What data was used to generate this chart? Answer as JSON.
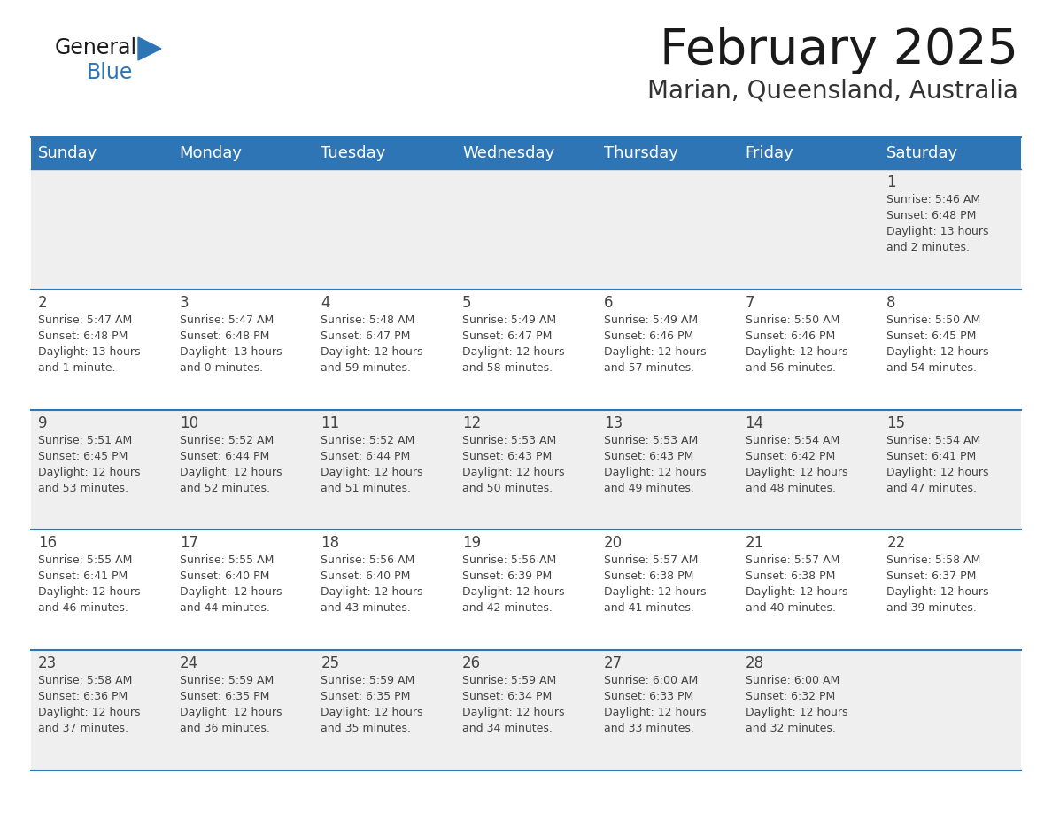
{
  "title": "February 2025",
  "subtitle": "Marian, Queensland, Australia",
  "days_of_week": [
    "Sunday",
    "Monday",
    "Tuesday",
    "Wednesday",
    "Thursday",
    "Friday",
    "Saturday"
  ],
  "header_bg": "#2E75B6",
  "header_text_color": "#FFFFFF",
  "cell_bg_odd": "#EFEFEF",
  "cell_bg_even": "#FFFFFF",
  "border_color": "#2E75B6",
  "text_color": "#444444",
  "title_color": "#1a1a1a",
  "subtitle_color": "#333333",
  "logo_black": "#1a1a1a",
  "logo_blue": "#2E75B6",
  "calendar_data": [
    [
      null,
      null,
      null,
      null,
      null,
      null,
      {
        "day": 1,
        "sunrise": "5:46 AM",
        "sunset": "6:48 PM",
        "daylight": "13 hours and 2 minutes."
      }
    ],
    [
      {
        "day": 2,
        "sunrise": "5:47 AM",
        "sunset": "6:48 PM",
        "daylight": "13 hours and 1 minute."
      },
      {
        "day": 3,
        "sunrise": "5:47 AM",
        "sunset": "6:48 PM",
        "daylight": "13 hours and 0 minutes."
      },
      {
        "day": 4,
        "sunrise": "5:48 AM",
        "sunset": "6:47 PM",
        "daylight": "12 hours and 59 minutes."
      },
      {
        "day": 5,
        "sunrise": "5:49 AM",
        "sunset": "6:47 PM",
        "daylight": "12 hours and 58 minutes."
      },
      {
        "day": 6,
        "sunrise": "5:49 AM",
        "sunset": "6:46 PM",
        "daylight": "12 hours and 57 minutes."
      },
      {
        "day": 7,
        "sunrise": "5:50 AM",
        "sunset": "6:46 PM",
        "daylight": "12 hours and 56 minutes."
      },
      {
        "day": 8,
        "sunrise": "5:50 AM",
        "sunset": "6:45 PM",
        "daylight": "12 hours and 54 minutes."
      }
    ],
    [
      {
        "day": 9,
        "sunrise": "5:51 AM",
        "sunset": "6:45 PM",
        "daylight": "12 hours and 53 minutes."
      },
      {
        "day": 10,
        "sunrise": "5:52 AM",
        "sunset": "6:44 PM",
        "daylight": "12 hours and 52 minutes."
      },
      {
        "day": 11,
        "sunrise": "5:52 AM",
        "sunset": "6:44 PM",
        "daylight": "12 hours and 51 minutes."
      },
      {
        "day": 12,
        "sunrise": "5:53 AM",
        "sunset": "6:43 PM",
        "daylight": "12 hours and 50 minutes."
      },
      {
        "day": 13,
        "sunrise": "5:53 AM",
        "sunset": "6:43 PM",
        "daylight": "12 hours and 49 minutes."
      },
      {
        "day": 14,
        "sunrise": "5:54 AM",
        "sunset": "6:42 PM",
        "daylight": "12 hours and 48 minutes."
      },
      {
        "day": 15,
        "sunrise": "5:54 AM",
        "sunset": "6:41 PM",
        "daylight": "12 hours and 47 minutes."
      }
    ],
    [
      {
        "day": 16,
        "sunrise": "5:55 AM",
        "sunset": "6:41 PM",
        "daylight": "12 hours and 46 minutes."
      },
      {
        "day": 17,
        "sunrise": "5:55 AM",
        "sunset": "6:40 PM",
        "daylight": "12 hours and 44 minutes."
      },
      {
        "day": 18,
        "sunrise": "5:56 AM",
        "sunset": "6:40 PM",
        "daylight": "12 hours and 43 minutes."
      },
      {
        "day": 19,
        "sunrise": "5:56 AM",
        "sunset": "6:39 PM",
        "daylight": "12 hours and 42 minutes."
      },
      {
        "day": 20,
        "sunrise": "5:57 AM",
        "sunset": "6:38 PM",
        "daylight": "12 hours and 41 minutes."
      },
      {
        "day": 21,
        "sunrise": "5:57 AM",
        "sunset": "6:38 PM",
        "daylight": "12 hours and 40 minutes."
      },
      {
        "day": 22,
        "sunrise": "5:58 AM",
        "sunset": "6:37 PM",
        "daylight": "12 hours and 39 minutes."
      }
    ],
    [
      {
        "day": 23,
        "sunrise": "5:58 AM",
        "sunset": "6:36 PM",
        "daylight": "12 hours and 37 minutes."
      },
      {
        "day": 24,
        "sunrise": "5:59 AM",
        "sunset": "6:35 PM",
        "daylight": "12 hours and 36 minutes."
      },
      {
        "day": 25,
        "sunrise": "5:59 AM",
        "sunset": "6:35 PM",
        "daylight": "12 hours and 35 minutes."
      },
      {
        "day": 26,
        "sunrise": "5:59 AM",
        "sunset": "6:34 PM",
        "daylight": "12 hours and 34 minutes."
      },
      {
        "day": 27,
        "sunrise": "6:00 AM",
        "sunset": "6:33 PM",
        "daylight": "12 hours and 33 minutes."
      },
      {
        "day": 28,
        "sunrise": "6:00 AM",
        "sunset": "6:32 PM",
        "daylight": "12 hours and 32 minutes."
      },
      null
    ]
  ]
}
